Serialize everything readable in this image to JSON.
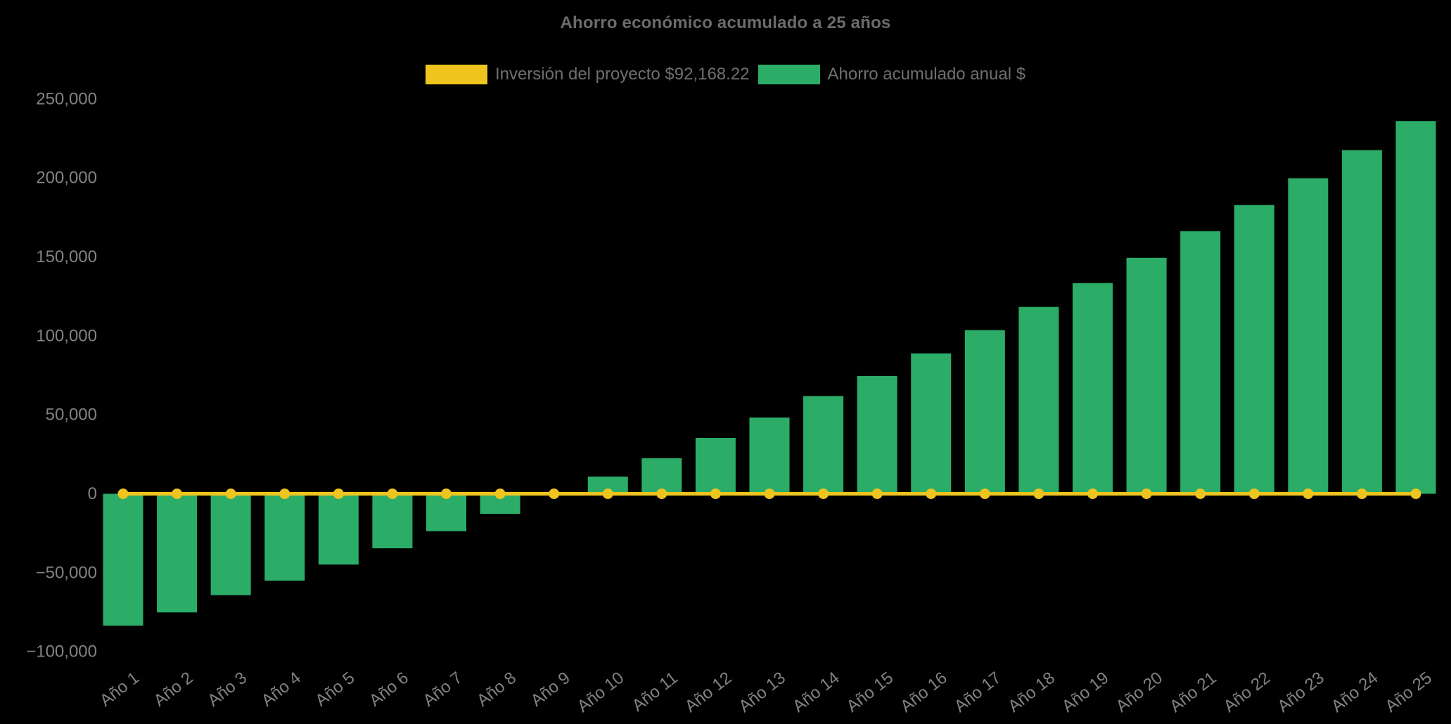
{
  "title": {
    "text": "Ahorro económico acumulado a 25 años"
  },
  "legend": [
    {
      "label": "Inversión del proyecto $92,168.22",
      "color": "#EFC41E",
      "type": "line"
    },
    {
      "label": "Ahorro acumulado anual $",
      "color": "#2BAD68",
      "type": "bar"
    }
  ],
  "colors": {
    "background": "#000000",
    "investment_yellow": "#EFC41E",
    "savings_green": "#2BAD68",
    "title_text": "#6B6B6B",
    "tick_text": "#828282"
  },
  "chart_data": {
    "type": "bar",
    "title": "Ahorro económico acumulado a 25 años",
    "categories": [
      "Año 1",
      "Año 2",
      "Año 3",
      "Año 4",
      "Año 5",
      "Año 6",
      "Año 7",
      "Año 8",
      "Año 9",
      "Año 10",
      "Año 11",
      "Año 12",
      "Año 13",
      "Año 14",
      "Año 15",
      "Año 16",
      "Año 17",
      "Año 18",
      "Año 19",
      "Año 20",
      "Año 21",
      "Año 22",
      "Año 23",
      "Año 24",
      "Año 25"
    ],
    "series": [
      {
        "name": "Inversión del proyecto $92,168.22",
        "type": "line",
        "color": "#EFC41E",
        "values": [
          0,
          0,
          0,
          0,
          0,
          0,
          0,
          0,
          0,
          0,
          0,
          0,
          0,
          0,
          0,
          0,
          0,
          0,
          0,
          0,
          0,
          0,
          0,
          0,
          0
        ]
      },
      {
        "name": "Ahorro acumulado anual $",
        "type": "bar",
        "color": "#2BAD68",
        "values": [
          -83500,
          -75100,
          -64200,
          -55000,
          -44800,
          -34500,
          -23700,
          -12700,
          -1000,
          10900,
          22500,
          35400,
          48300,
          61900,
          74600,
          88900,
          103600,
          118300,
          133400,
          149400,
          166200,
          182800,
          199800,
          217600,
          236000
        ]
      }
    ],
    "xlabel": "",
    "ylabel": "",
    "ylim": [
      -100000,
      250000
    ],
    "yticks": [
      -100000,
      -50000,
      0,
      50000,
      100000,
      150000,
      200000,
      250000
    ],
    "grid": false,
    "legend_position": "top",
    "x_tick_rotation": -38
  }
}
